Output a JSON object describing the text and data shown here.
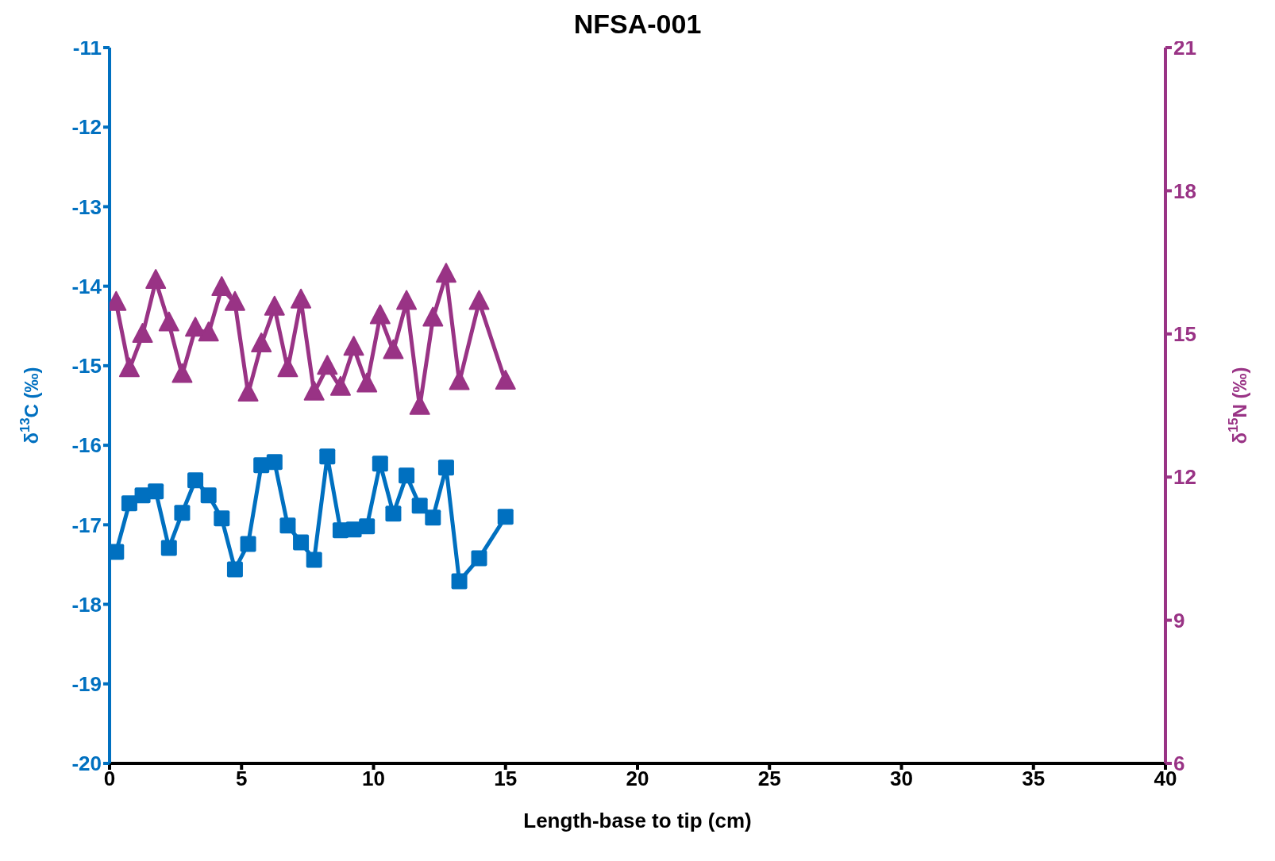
{
  "chart_data": {
    "type": "line",
    "title": "NFSA-001",
    "xlabel": "Length-base to tip (cm)",
    "ylabel": "δ$^{13}$C (‰)",
    "y2label": "δ$^{15}$N (‰)",
    "x": [
      0.25,
      0.75,
      1.25,
      1.75,
      2.25,
      2.75,
      3.25,
      3.75,
      4.25,
      4.75,
      5.25,
      5.75,
      6.25,
      6.75,
      7.25,
      7.75,
      8.25,
      8.75,
      9.25,
      9.75,
      10.25,
      10.75,
      11.25,
      11.75,
      12.25,
      12.75,
      13.25,
      14,
      15
    ],
    "series": [
      {
        "color": "#0070c0",
        "marker": "square",
        "values": [
          -17.34,
          -16.73,
          -16.63,
          -16.58,
          -17.29,
          -16.85,
          -16.44,
          -16.63,
          -16.92,
          -17.56,
          -17.24,
          -16.25,
          -16.21,
          -17.01,
          -17.22,
          -17.44,
          -16.14,
          -17.07,
          -17.06,
          -17.02,
          -16.23,
          -16.86,
          -16.38,
          -16.76,
          -16.91,
          -16.28,
          -17.71,
          -17.42,
          -16.9
        ]
      },
      {
        "color": "#993385",
        "marker": "triangle",
        "axis": "y2",
        "values": [
          15.65,
          14.26,
          14.98,
          16.11,
          15.22,
          14.14,
          15.11,
          15.01,
          15.96,
          15.65,
          13.75,
          14.78,
          15.55,
          14.26,
          15.7,
          13.77,
          14.31,
          13.87,
          14.71,
          13.94,
          15.37,
          14.64,
          15.67,
          13.47,
          15.32,
          16.24,
          13.99,
          15.67,
          14.0
        ]
      }
    ],
    "xlim": [
      0,
      40
    ],
    "xticks": [
      0,
      5,
      10,
      15,
      20,
      25,
      30,
      35,
      40
    ],
    "ylim": [
      -20,
      -11
    ],
    "yticks": [
      -20,
      -19,
      -18,
      -17,
      -16,
      -15,
      -14,
      -13,
      -12,
      -11
    ],
    "y2lim": [
      6,
      21
    ],
    "y2ticks": [
      6,
      9,
      12,
      15,
      18,
      21
    ],
    "grid": false,
    "line_style": "solid"
  }
}
